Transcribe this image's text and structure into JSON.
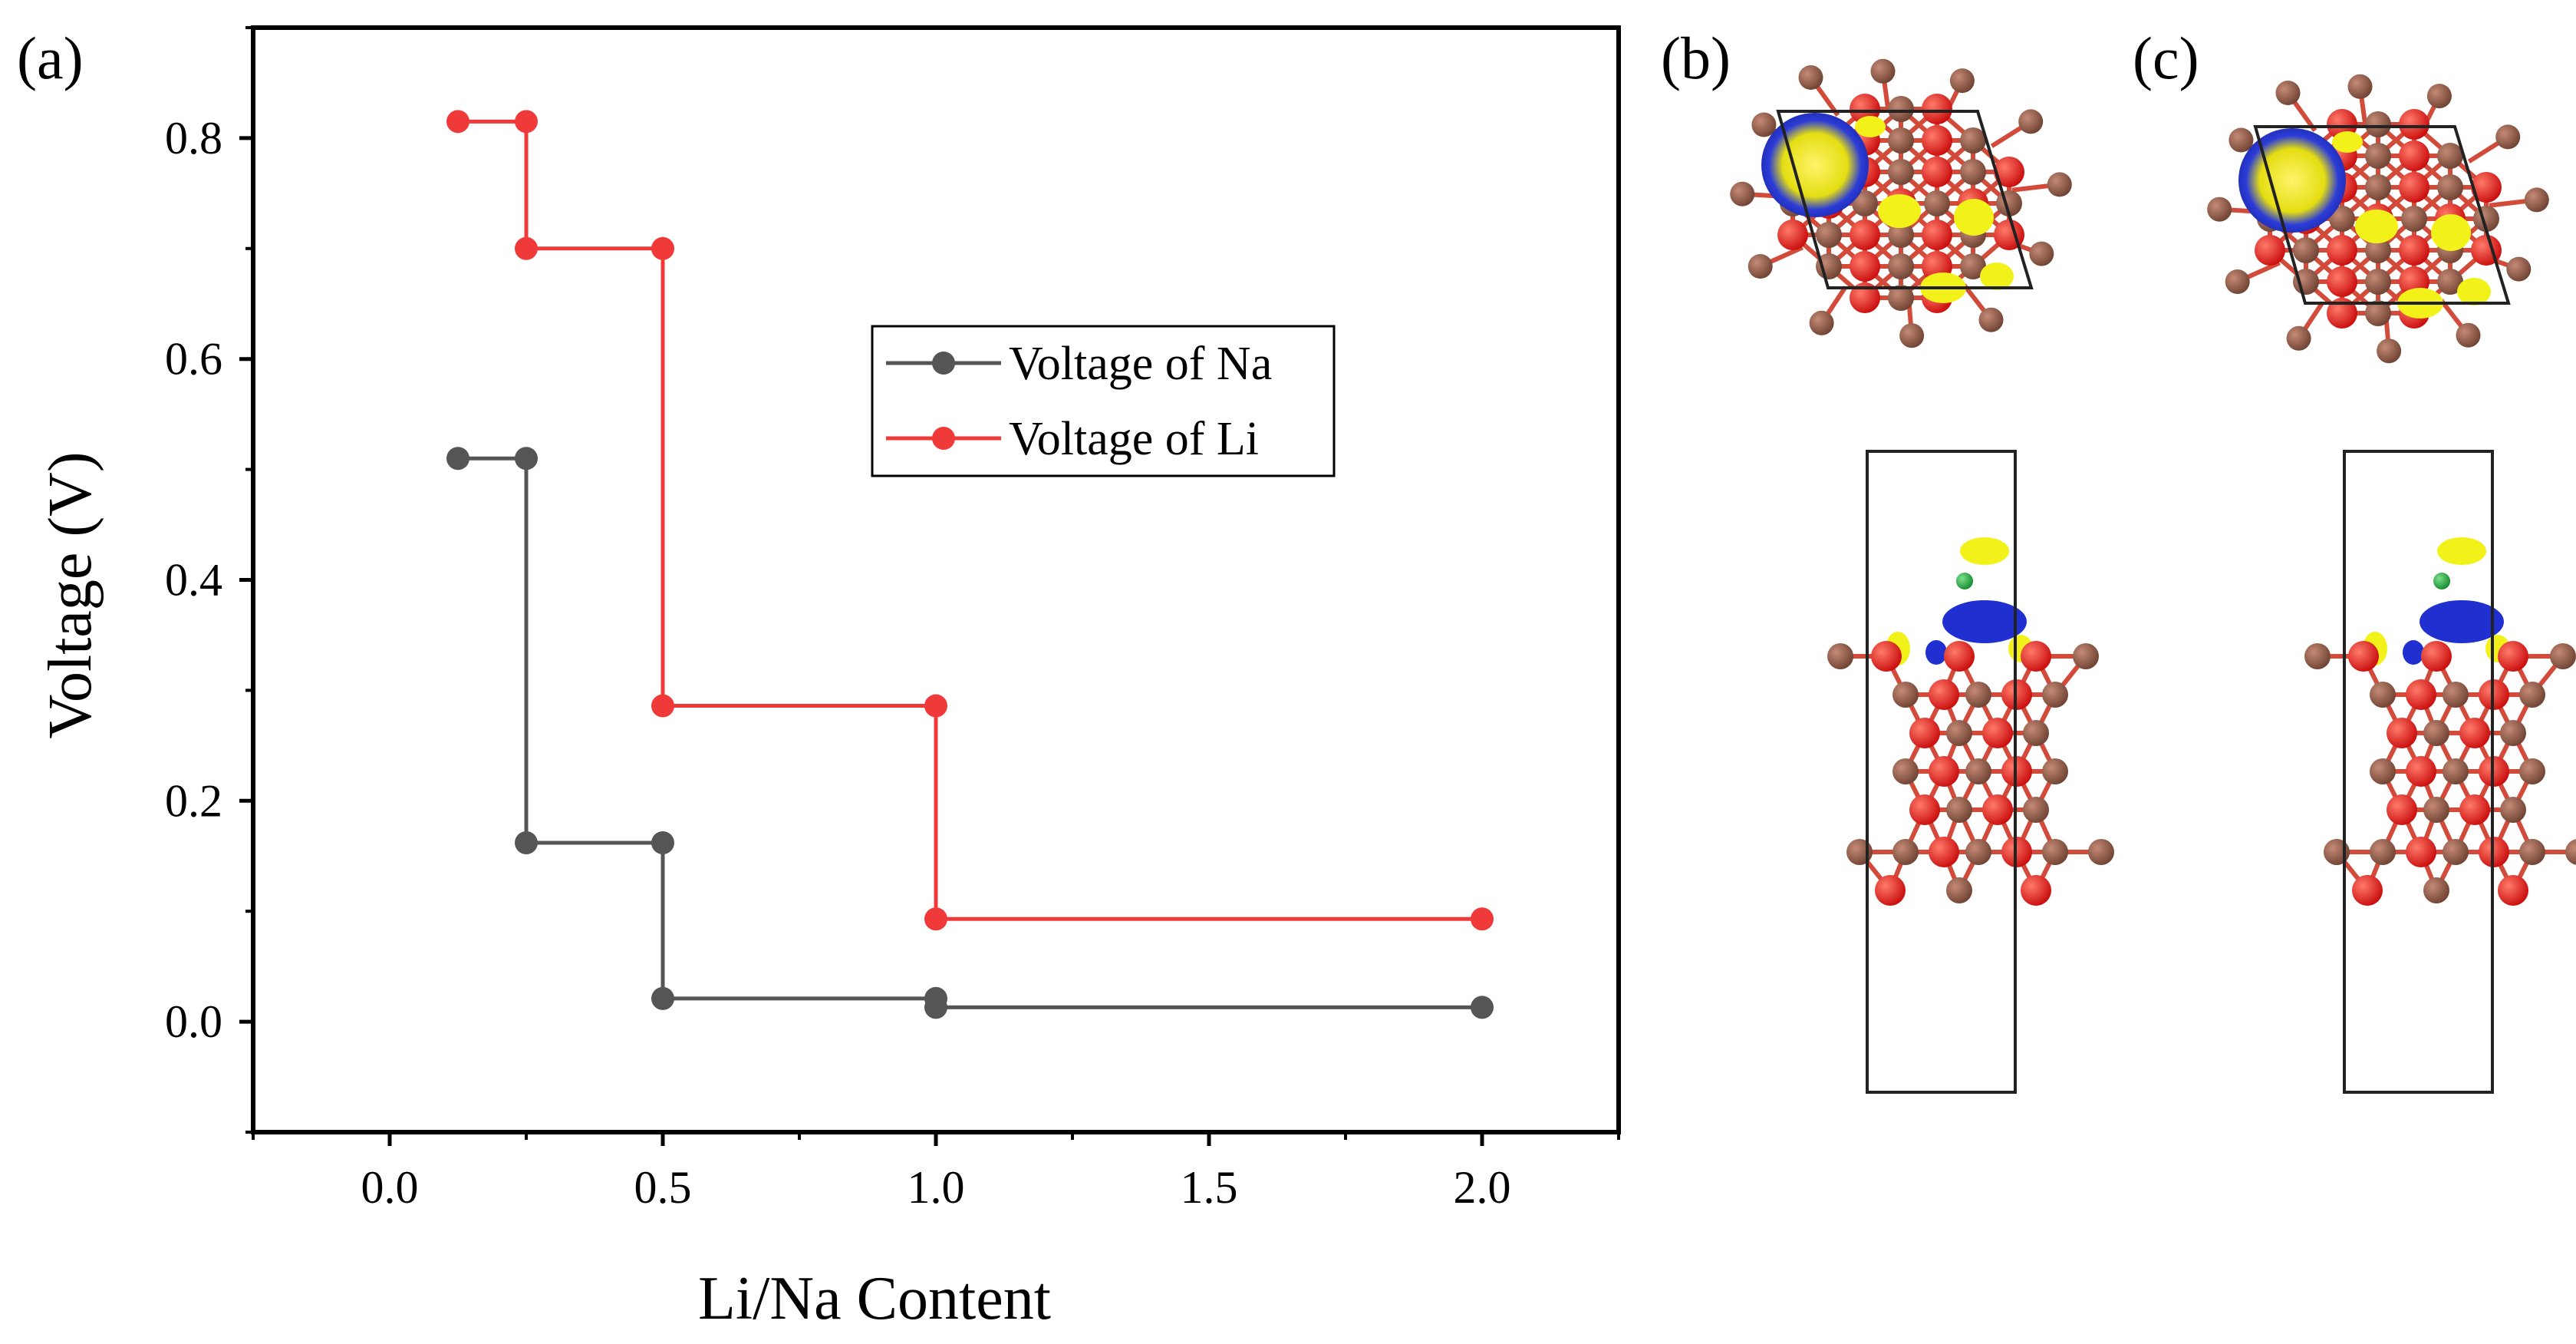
{
  "panels": {
    "a": "(a)",
    "b": "(b)",
    "c": "(c)"
  },
  "chart_data": {
    "type": "line",
    "step": "post",
    "xlabel": "Li/Na Content",
    "ylabel": "Voltage (V)",
    "xlim": [
      -0.25,
      2.25
    ],
    "ylim": [
      -0.1,
      0.9
    ],
    "xticks": [
      0.0,
      0.5,
      1.0,
      1.5,
      2.0
    ],
    "xtick_labels": [
      "0.0",
      "0.5",
      "1.0",
      "1.5",
      "2.0"
    ],
    "yticks": [
      0.0,
      0.2,
      0.4,
      0.6,
      0.8
    ],
    "ytick_labels": [
      "0.0",
      "0.2",
      "0.4",
      "0.6",
      "0.8"
    ],
    "legend_position": "center-right",
    "series": [
      {
        "name": "Voltage of Na",
        "color": "#555555",
        "x": [
          0.125,
          0.25,
          0.25,
          0.5,
          0.5,
          1.0,
          1.0,
          2.0
        ],
        "y": [
          0.51,
          0.51,
          0.162,
          0.162,
          0.021,
          0.021,
          0.013,
          0.013
        ]
      },
      {
        "name": "Voltage of Li",
        "color": "#f03a3a",
        "x": [
          0.125,
          0.25,
          0.25,
          0.5,
          0.5,
          1.0,
          1.0,
          2.0
        ],
        "y": [
          0.815,
          0.815,
          0.7,
          0.7,
          0.286,
          0.286,
          0.093,
          0.093
        ]
      }
    ]
  },
  "colors": {
    "carbon": "#8b5a48",
    "oxygen": "#ee1c1c",
    "charge_accumulation": "#f2f21a",
    "charge_depletion": "#1f2fd0",
    "adatom": "#1a9a3a"
  },
  "structure_images": [
    {
      "panel": "b",
      "top_view": "top-view-structure-b",
      "side_view": "side-view-structure-b"
    },
    {
      "panel": "c",
      "top_view": "top-view-structure-c",
      "side_view": "side-view-structure-c"
    }
  ]
}
